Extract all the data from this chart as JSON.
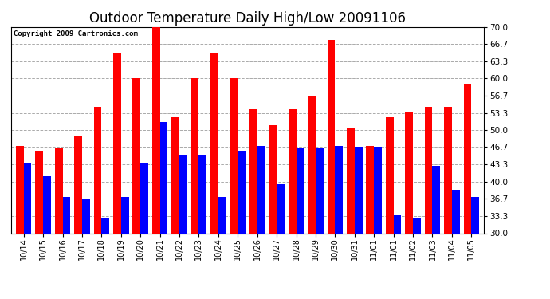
{
  "title": "Outdoor Temperature Daily High/Low 20091106",
  "copyright": "Copyright 2009 Cartronics.com",
  "dates": [
    "10/14",
    "10/15",
    "10/16",
    "10/17",
    "10/18",
    "10/19",
    "10/20",
    "10/21",
    "10/22",
    "10/23",
    "10/24",
    "10/25",
    "10/26",
    "10/27",
    "10/28",
    "10/29",
    "10/30",
    "10/31",
    "11/01",
    "11/01",
    "11/02",
    "11/03",
    "11/04",
    "11/05"
  ],
  "highs": [
    47.0,
    46.0,
    46.5,
    49.0,
    54.5,
    65.0,
    60.0,
    70.0,
    52.5,
    60.0,
    65.0,
    60.0,
    54.0,
    51.0,
    54.0,
    56.5,
    67.5,
    50.5,
    47.0,
    52.5,
    53.5,
    54.5,
    54.5,
    59.0
  ],
  "lows": [
    43.5,
    41.0,
    37.0,
    36.7,
    33.0,
    37.0,
    43.5,
    51.5,
    45.0,
    45.0,
    37.0,
    46.0,
    47.0,
    39.5,
    46.5,
    46.5,
    47.0,
    46.7,
    46.7,
    33.5,
    33.0,
    43.0,
    38.5,
    37.0
  ],
  "high_color": "#ff0000",
  "low_color": "#0000ff",
  "bg_color": "#ffffff",
  "plot_bg_color": "#ffffff",
  "grid_color": "#aaaaaa",
  "title_fontsize": 12,
  "ylabel_right": [
    "30.0",
    "33.3",
    "36.7",
    "40.0",
    "43.3",
    "46.7",
    "50.0",
    "53.3",
    "56.7",
    "60.0",
    "63.3",
    "66.7",
    "70.0"
  ],
  "yticks": [
    30.0,
    33.3,
    36.7,
    40.0,
    43.3,
    46.7,
    50.0,
    53.3,
    56.7,
    60.0,
    63.3,
    66.7,
    70.0
  ],
  "ylim": [
    30.0,
    70.0
  ],
  "bar_width": 0.4
}
